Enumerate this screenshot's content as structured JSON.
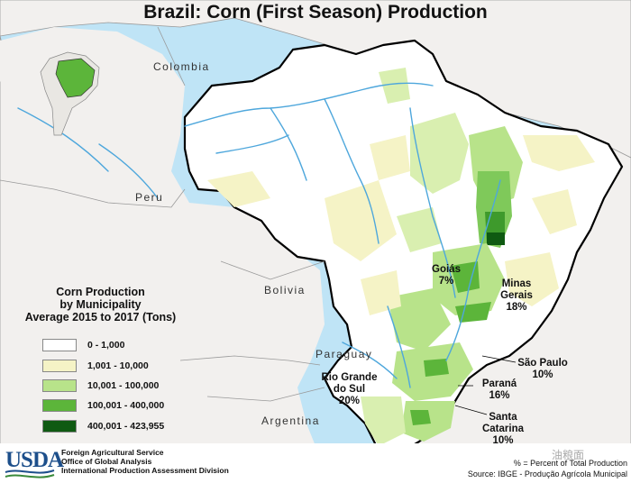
{
  "title": "Brazil: Corn (First Season) Production",
  "countries": {
    "colombia": "Colombia",
    "peru": "Peru",
    "bolivia": "Bolivia",
    "paraguay": "Paraguay",
    "argentina": "Argentina"
  },
  "legend": {
    "title_line1": "Corn Production",
    "title_line2": "by Municipality",
    "title_line3": "Average 2015 to 2017 (Tons)",
    "classes": [
      {
        "label": "0 - 1,000",
        "color": "#ffffff"
      },
      {
        "label": "1,001 - 10,000",
        "color": "#f5f3c6"
      },
      {
        "label": "10,001 - 100,000",
        "color": "#b8e38a"
      },
      {
        "label": "100,001 - 400,000",
        "color": "#5cb53a"
      },
      {
        "label": "400,001 - 423,955",
        "color": "#0f5a12"
      }
    ]
  },
  "states": {
    "goias": {
      "name": "Goiás",
      "pct": "7%"
    },
    "minas": {
      "name1": "Minas",
      "name2": "Gerais",
      "pct": "18%"
    },
    "sao_paulo": {
      "name": "São Paulo",
      "pct": "10%"
    },
    "parana": {
      "name": "Paraná",
      "pct": "16%"
    },
    "santa_catarina": {
      "name1": "Santa",
      "name2": "Catarina",
      "pct": "10%"
    },
    "rio_grande": {
      "name1": "Rio Grande",
      "name2": "do Sul",
      "pct": "20%"
    }
  },
  "footer": {
    "logo": "USDA",
    "line1": "Foreign Agricultural Service",
    "line2": "Office of Global Analysis",
    "line3": "International Production Assessment Division",
    "note": "% = Percent of Total Production",
    "source": "Source: IBGE - Produção Agrícola Municipal",
    "watermark": "油粮面"
  },
  "colors": {
    "ocean": "#bfe4f6",
    "land": "#f2f0ee",
    "brazil_base": "#ffffff",
    "rivers": "#4ea7dc"
  }
}
